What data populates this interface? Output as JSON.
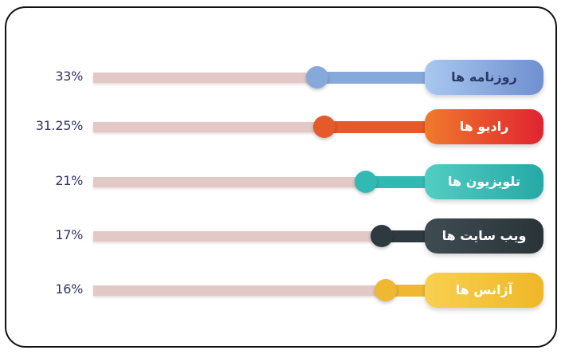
{
  "chart_data": {
    "type": "bar",
    "orientation": "horizontal",
    "categories": [
      "روزنامه ها",
      "رادیو ها",
      "تلویزیون ها",
      "ویب سایت ها",
      "آژانس ها"
    ],
    "values": [
      33,
      31.25,
      21,
      17,
      16
    ],
    "value_labels": [
      "33%",
      "31.25%",
      "21%",
      "17%",
      "16%"
    ],
    "unit": "%",
    "xlim": [
      0,
      100
    ],
    "colors": [
      "#86a9dc",
      "#e45a2a",
      "#33b9b3",
      "#2e3a40",
      "#eeb833"
    ],
    "label_text_colors": [
      "#2b3a66",
      "#ffffff",
      "#ffffff",
      "#ffffff",
      "#ffffff"
    ],
    "label_gradients": [
      [
        "#6f8fd0",
        "#a8c8f0"
      ],
      [
        "#e02430",
        "#f07a2c"
      ],
      [
        "#25a9a6",
        "#52cdc2"
      ],
      [
        "#2a3438",
        "#3e4c52"
      ],
      [
        "#efb728",
        "#f8d050"
      ]
    ],
    "grid": false,
    "legend": "none"
  }
}
